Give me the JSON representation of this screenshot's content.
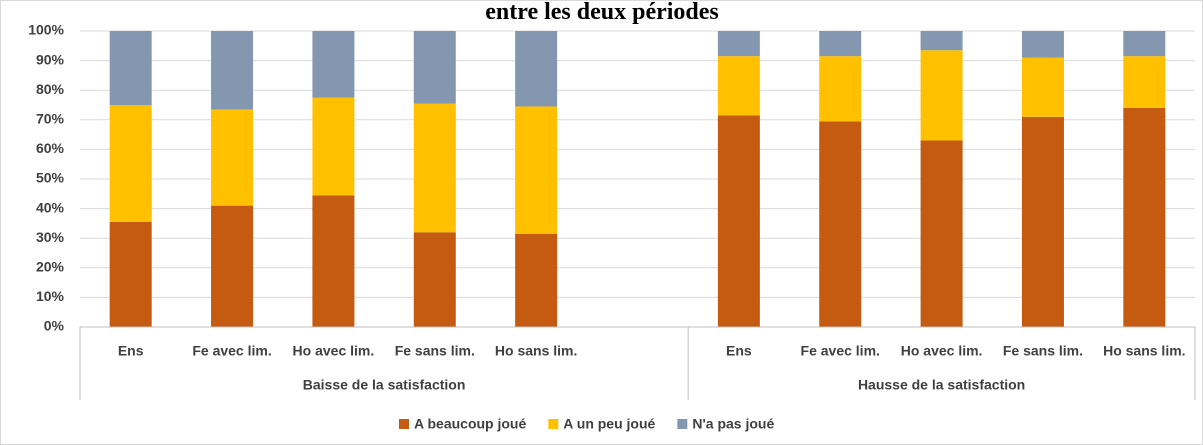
{
  "chart_data": {
    "type": "stacked_bar",
    "title": "entre les deux périodes",
    "categories": [
      "Ens",
      "Fe avec lim.",
      "Ho avec lim.",
      "Fe sans lim.",
      "Ho sans lim.",
      null,
      "Ens",
      "Fe avec lim.",
      "Ho avec lim.",
      "Fe sans lim.",
      "Ho sans lim."
    ],
    "group_labels": [
      "Baisse de la satisfaction",
      "Hausse de la satisfaction"
    ],
    "series": [
      {
        "name": "A beaucoup joué",
        "color": "#c55a11",
        "values": [
          35.5,
          41,
          44.5,
          32,
          31.5,
          null,
          71.5,
          69.5,
          63,
          71,
          74
        ]
      },
      {
        "name": "A un peu joué",
        "color": "#ffc000",
        "values": [
          39.5,
          32.5,
          33,
          43.5,
          43,
          null,
          20,
          22,
          30.5,
          20,
          17.5
        ]
      },
      {
        "name": "N'a pas joué",
        "color": "#8497b0",
        "values": [
          25,
          26.5,
          22.5,
          24.5,
          25.5,
          null,
          8.5,
          8.5,
          6.5,
          9,
          8.5
        ]
      }
    ],
    "ylim": [
      0,
      100
    ],
    "yticks": [
      {
        "value": 0,
        "label": "0%"
      },
      {
        "value": 10,
        "label": "10%"
      },
      {
        "value": 20,
        "label": "20%"
      },
      {
        "value": 30,
        "label": "30%"
      },
      {
        "value": 40,
        "label": "40%"
      },
      {
        "value": 50,
        "label": "50%"
      },
      {
        "value": 60,
        "label": "60%"
      },
      {
        "value": 70,
        "label": "70%"
      },
      {
        "value": 80,
        "label": "80%"
      },
      {
        "value": 90,
        "label": "90%"
      },
      {
        "value": 100,
        "label": "100%"
      }
    ],
    "grid": true,
    "legend": "bottom"
  }
}
